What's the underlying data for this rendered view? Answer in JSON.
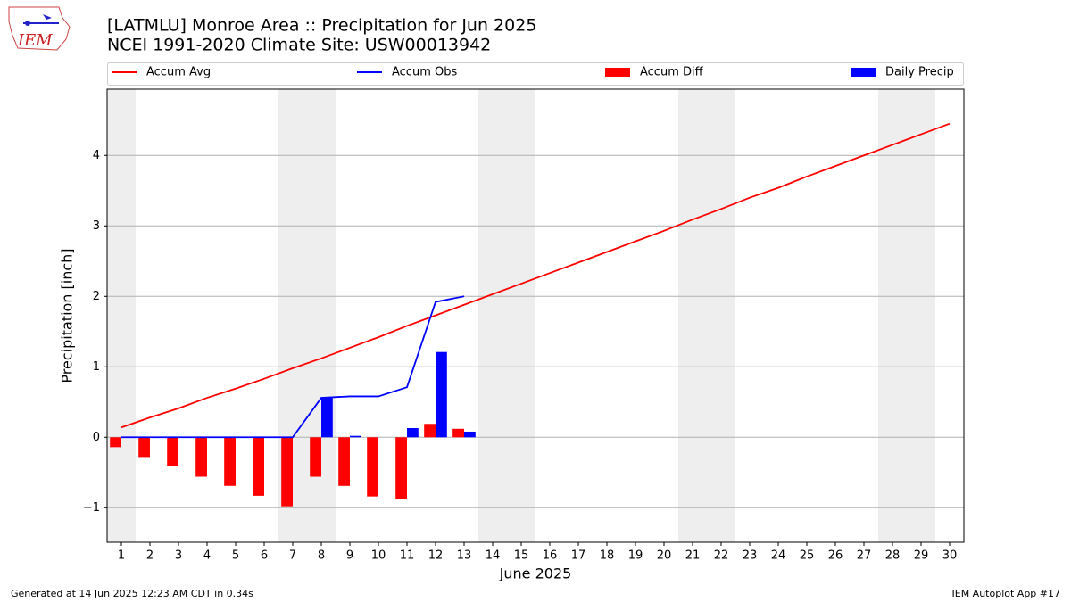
{
  "chart_data": {
    "type": "bar_line",
    "title": "[LATMLU] Monroe Area :: Precipitation for Jun 2025",
    "subtitle": "NCEI 1991-2020 Climate Site: USW00013942",
    "x_label": "June 2025",
    "y_label": "Precipitation [inch]",
    "footer_left": "Generated at 14 Jun 2025 12:23 AM CDT in 0.34s",
    "footer_right": "IEM Autoplot App #17",
    "logo_text": "IEM",
    "x": [
      1,
      2,
      3,
      4,
      5,
      6,
      7,
      8,
      9,
      10,
      11,
      12,
      13,
      14,
      15,
      16,
      17,
      18,
      19,
      20,
      21,
      22,
      23,
      24,
      25,
      26,
      27,
      28,
      29,
      30
    ],
    "xlim": [
      0.5,
      30.5
    ],
    "xticks": [
      1,
      2,
      3,
      4,
      5,
      6,
      7,
      8,
      9,
      10,
      11,
      12,
      13,
      14,
      15,
      16,
      17,
      18,
      19,
      20,
      21,
      22,
      23,
      24,
      25,
      26,
      27,
      28,
      29,
      30
    ],
    "ylim": [
      -1.49,
      4.94
    ],
    "yticks": [
      {
        "value": -1,
        "label": "−1"
      },
      0,
      1,
      2,
      3,
      4
    ],
    "grid": true,
    "series": [
      {
        "name": "Accum Avg",
        "type": "line",
        "color": "#ff0000",
        "values": [
          0.14,
          0.28,
          0.41,
          0.56,
          0.69,
          0.83,
          0.98,
          1.12,
          1.27,
          1.42,
          1.58,
          1.73,
          1.88,
          2.03,
          2.18,
          2.33,
          2.48,
          2.63,
          2.78,
          2.93,
          3.09,
          3.24,
          3.4,
          3.54,
          3.7,
          3.85,
          4.0,
          4.15,
          4.3,
          4.45
        ]
      },
      {
        "name": "Accum Obs",
        "type": "line",
        "color": "#0000ff",
        "values": [
          0,
          0,
          0,
          0,
          0,
          0,
          0,
          0.56,
          0.58,
          0.58,
          0.71,
          1.92,
          2.0,
          null,
          null,
          null,
          null,
          null,
          null,
          null,
          null,
          null,
          null,
          null,
          null,
          null,
          null,
          null,
          null,
          null
        ]
      },
      {
        "name": "Accum Diff",
        "type": "bar",
        "color": "#ff0000",
        "values": [
          -0.14,
          -0.28,
          -0.41,
          -0.56,
          -0.69,
          -0.83,
          -0.98,
          -0.56,
          -0.69,
          -0.84,
          -0.87,
          0.19,
          0.12,
          null,
          null,
          null,
          null,
          null,
          null,
          null,
          null,
          null,
          null,
          null,
          null,
          null,
          null,
          null,
          null,
          null
        ]
      },
      {
        "name": "Daily Precip",
        "type": "bar",
        "color": "#0000ff",
        "values": [
          0,
          0,
          0,
          0,
          0,
          0,
          0,
          0.56,
          0.02,
          0,
          0.13,
          1.21,
          0.08,
          null,
          null,
          null,
          null,
          null,
          null,
          null,
          null,
          null,
          null,
          null,
          null,
          null,
          null,
          null,
          null,
          null
        ]
      }
    ]
  }
}
